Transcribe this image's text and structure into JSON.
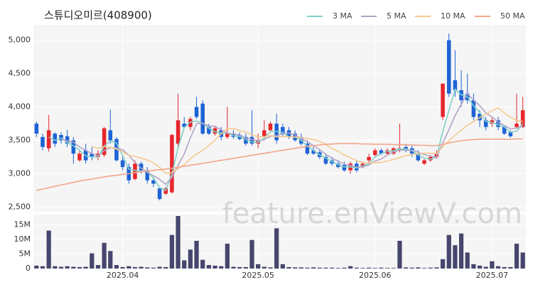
{
  "chart_data": {
    "type": "candlestick",
    "title": "스튜디오미르(408900)",
    "watermark": "feature.enViewV.com",
    "categories": [
      null,
      null,
      null,
      null,
      null,
      null,
      null,
      null,
      null,
      null,
      null,
      null,
      null,
      null,
      "2025.04",
      null,
      null,
      null,
      null,
      null,
      null,
      null,
      null,
      null,
      null,
      null,
      null,
      null,
      null,
      null,
      null,
      null,
      null,
      null,
      null,
      null,
      "2025.05",
      null,
      null,
      null,
      null,
      null,
      null,
      null,
      null,
      null,
      null,
      null,
      null,
      null,
      null,
      null,
      null,
      null,
      null,
      "2025.06",
      null,
      null,
      null,
      null,
      null,
      null,
      null,
      null,
      null,
      null,
      null,
      null,
      null,
      null,
      null,
      null,
      null,
      null,
      "2025.07",
      null,
      null,
      null,
      null,
      null
    ],
    "open": [
      3750,
      3550,
      3380,
      3600,
      3580,
      3560,
      3500,
      3200,
      3350,
      3300,
      3250,
      3280,
      3650,
      3520,
      3200,
      3100,
      2920,
      3150,
      3050,
      2900,
      2780,
      2700,
      2720,
      3450,
      3750,
      3700,
      4000,
      4050,
      3700,
      3600,
      3650,
      3550,
      3600,
      3580,
      3550,
      3550,
      3450,
      3550,
      3650,
      3750,
      3700,
      3650,
      3600,
      3550,
      3450,
      3350,
      3320,
      3250,
      3200,
      3150,
      3130,
      3050,
      3150,
      3100,
      3200,
      3280,
      3350,
      3300,
      3300,
      3350,
      3400,
      3380,
      3300,
      3150,
      3200,
      3250,
      3850,
      5000,
      4400,
      4250,
      4200,
      4100,
      3900,
      3800,
      3750,
      3800,
      3700,
      3620,
      3700,
      3700
    ],
    "high": [
      3780,
      3600,
      3880,
      3620,
      3620,
      3660,
      3550,
      3350,
      3450,
      3400,
      3350,
      3700,
      3960,
      3550,
      3250,
      3150,
      3200,
      3180,
      3100,
      2950,
      2800,
      2800,
      3600,
      4200,
      3850,
      3850,
      4150,
      4100,
      3750,
      3720,
      3700,
      4000,
      3650,
      3620,
      3600,
      3950,
      3600,
      3800,
      3780,
      3900,
      3750,
      3700,
      3650,
      3600,
      3500,
      3400,
      3350,
      3280,
      3250,
      3200,
      3180,
      3180,
      3200,
      3180,
      3300,
      3380,
      3380,
      3380,
      3400,
      3750,
      3450,
      3420,
      3350,
      3220,
      3280,
      3350,
      4350,
      5100,
      4850,
      4550,
      4500,
      4200,
      3950,
      3850,
      3850,
      3850,
      3720,
      3650,
      4200,
      4150
    ],
    "low": [
      3550,
      3350,
      3330,
      3400,
      3450,
      3400,
      3150,
      3180,
      3150,
      3200,
      3200,
      3250,
      3450,
      3180,
      3050,
      2850,
      2900,
      3000,
      2850,
      2800,
      2600,
      2680,
      2700,
      3400,
      3680,
      3650,
      3820,
      3580,
      3580,
      3570,
      3500,
      3520,
      3520,
      3500,
      3420,
      3420,
      3380,
      3500,
      3620,
      3450,
      3550,
      3520,
      3480,
      3420,
      3280,
      3280,
      3220,
      3130,
      3120,
      3080,
      3030,
      3000,
      3020,
      3080,
      3150,
      3250,
      3280,
      3280,
      3280,
      3320,
      3320,
      3250,
      3180,
      3130,
      3180,
      3220,
      3800,
      4150,
      4150,
      4000,
      4050,
      3800,
      3700,
      3650,
      3700,
      3650,
      3580,
      3540,
      3680,
      3680
    ],
    "close": [
      3600,
      3400,
      3650,
      3450,
      3500,
      3450,
      3300,
      3300,
      3200,
      3250,
      3300,
      3680,
      3500,
      3200,
      3100,
      2900,
      3150,
      3050,
      2900,
      2850,
      2620,
      2780,
      3580,
      3800,
      3700,
      3820,
      3850,
      3600,
      3600,
      3680,
      3550,
      3600,
      3550,
      3520,
      3450,
      3450,
      3500,
      3650,
      3750,
      3500,
      3600,
      3550,
      3500,
      3450,
      3300,
      3300,
      3250,
      3150,
      3150,
      3100,
      3050,
      3150,
      3050,
      3150,
      3250,
      3350,
      3300,
      3350,
      3380,
      3380,
      3350,
      3300,
      3200,
      3200,
      3250,
      3300,
      4350,
      4200,
      4250,
      4100,
      4100,
      3850,
      3800,
      3700,
      3800,
      3700,
      3600,
      3560,
      3750,
      3950
    ],
    "volume": [
      1000000,
      800000,
      13000000,
      800000,
      600000,
      800000,
      600000,
      500000,
      600000,
      5200000,
      1200000,
      8800000,
      6000000,
      1200000,
      500000,
      800000,
      500000,
      600000,
      400000,
      300000,
      600000,
      500000,
      11500000,
      18000000,
      2800000,
      6500000,
      9500000,
      3000000,
      1200000,
      1000000,
      800000,
      8500000,
      600000,
      500000,
      500000,
      9800000,
      1500000,
      600000,
      400000,
      13800000,
      1500000,
      500000,
      400000,
      400000,
      300000,
      400000,
      300000,
      300000,
      300000,
      200000,
      300000,
      800000,
      300000,
      200000,
      300000,
      200000,
      300000,
      200000,
      200000,
      9500000,
      400000,
      300000,
      400000,
      200000,
      300000,
      400000,
      3200000,
      11500000,
      8000000,
      12000000,
      5500000,
      1500000,
      1000000,
      600000,
      2500000,
      800000,
      500000,
      500000,
      8500000,
      5500000
    ],
    "up_color": "#e8262d",
    "down_color": "#1e63d6",
    "volume_color": "#46466e",
    "series": [
      {
        "name": "3 MA",
        "color": "#7fd1c8",
        "values": [
          null,
          null,
          3550,
          3500,
          3533,
          3467,
          3417,
          3350,
          3267,
          3250,
          3250,
          3410,
          3493,
          3460,
          3267,
          3067,
          3050,
          3033,
          3033,
          2933,
          2790,
          2750,
          2993,
          3387,
          3693,
          3773,
          3790,
          3757,
          3683,
          3627,
          3610,
          3610,
          3567,
          3557,
          3507,
          3473,
          3467,
          3533,
          3633,
          3633,
          3617,
          3550,
          3550,
          3500,
          3417,
          3350,
          3283,
          3233,
          3183,
          3133,
          3100,
          3100,
          3083,
          3117,
          3150,
          3250,
          3300,
          3333,
          3343,
          3370,
          3370,
          3343,
          3283,
          3233,
          3217,
          3250,
          3633,
          3950,
          4267,
          4183,
          4150,
          4017,
          3917,
          3783,
          3767,
          3733,
          3700,
          3620,
          3637,
          3753
        ]
      },
      {
        "name": "5 MA",
        "color": "#b3a3c9",
        "values": [
          null,
          null,
          null,
          null,
          3520,
          3490,
          3470,
          3400,
          3350,
          3300,
          3270,
          3346,
          3386,
          3386,
          3356,
          3276,
          3170,
          3080,
          3020,
          2970,
          2914,
          2840,
          2946,
          3126,
          3296,
          3536,
          3750,
          3754,
          3714,
          3710,
          3656,
          3606,
          3596,
          3580,
          3534,
          3514,
          3494,
          3514,
          3560,
          3570,
          3600,
          3610,
          3580,
          3520,
          3480,
          3420,
          3360,
          3290,
          3230,
          3190,
          3140,
          3120,
          3100,
          3100,
          3130,
          3190,
          3220,
          3280,
          3326,
          3352,
          3352,
          3352,
          3322,
          3286,
          3260,
          3250,
          3460,
          3660,
          3870,
          4040,
          4200,
          4100,
          4020,
          3910,
          3850,
          3770,
          3720,
          3672,
          3682,
          3712
        ]
      },
      {
        "name": "10 MA",
        "color": "#f5c98f",
        "values": [
          null,
          null,
          null,
          null,
          null,
          null,
          null,
          null,
          null,
          3410,
          3380,
          3408,
          3393,
          3368,
          3328,
          3273,
          3258,
          3233,
          3203,
          3163,
          3095,
          3005,
          3013,
          3073,
          3133,
          3225,
          3295,
          3350,
          3420,
          3503,
          3596,
          3678,
          3675,
          3647,
          3622,
          3585,
          3550,
          3555,
          3570,
          3552,
          3557,
          3552,
          3547,
          3540,
          3525,
          3510,
          3485,
          3435,
          3375,
          3335,
          3280,
          3240,
          3195,
          3165,
          3160,
          3165,
          3170,
          3190,
          3213,
          3241,
          3271,
          3286,
          3301,
          3306,
          3306,
          3301,
          3406,
          3491,
          3578,
          3650,
          3725,
          3780,
          3840,
          3890,
          3945,
          3985,
          3910,
          3846,
          3796,
          3781
        ]
      },
      {
        "name": "50 MA",
        "color": "#f4a58a",
        "values": [
          2750,
          2770,
          2790,
          2810,
          2830,
          2850,
          2870,
          2890,
          2905,
          2920,
          2935,
          2950,
          2965,
          2975,
          2990,
          3000,
          3015,
          3030,
          3040,
          3050,
          3060,
          3070,
          3080,
          3095,
          3110,
          3125,
          3140,
          3155,
          3170,
          3185,
          3200,
          3215,
          3230,
          3245,
          3260,
          3275,
          3290,
          3305,
          3320,
          3335,
          3350,
          3365,
          3380,
          3395,
          3410,
          3420,
          3430,
          3440,
          3445,
          3450,
          3450,
          3450,
          3450,
          3445,
          3445,
          3440,
          3440,
          3440,
          3435,
          3435,
          3430,
          3430,
          3425,
          3425,
          3420,
          3420,
          3440,
          3460,
          3480,
          3495,
          3505,
          3510,
          3515,
          3515,
          3515,
          3515,
          3515,
          3515,
          3520,
          3520
        ]
      }
    ],
    "ylim": [
      2430,
      5230
    ],
    "yticks": [
      {
        "value": 2500,
        "label": "2,500"
      },
      {
        "value": 3000,
        "label": "3,000"
      },
      {
        "value": 3500,
        "label": "3,500"
      },
      {
        "value": 4000,
        "label": "4,000"
      },
      {
        "value": 4500,
        "label": "4,500"
      },
      {
        "value": 5000,
        "label": "5,000"
      }
    ],
    "volume_ylim": [
      0,
      18500000
    ],
    "volume_yticks": [
      0,
      {
        "value": 5000000,
        "label": "5M"
      },
      {
        "value": 10000000,
        "label": "10M"
      },
      {
        "value": 15000000,
        "label": "15M"
      }
    ],
    "grid": true
  }
}
